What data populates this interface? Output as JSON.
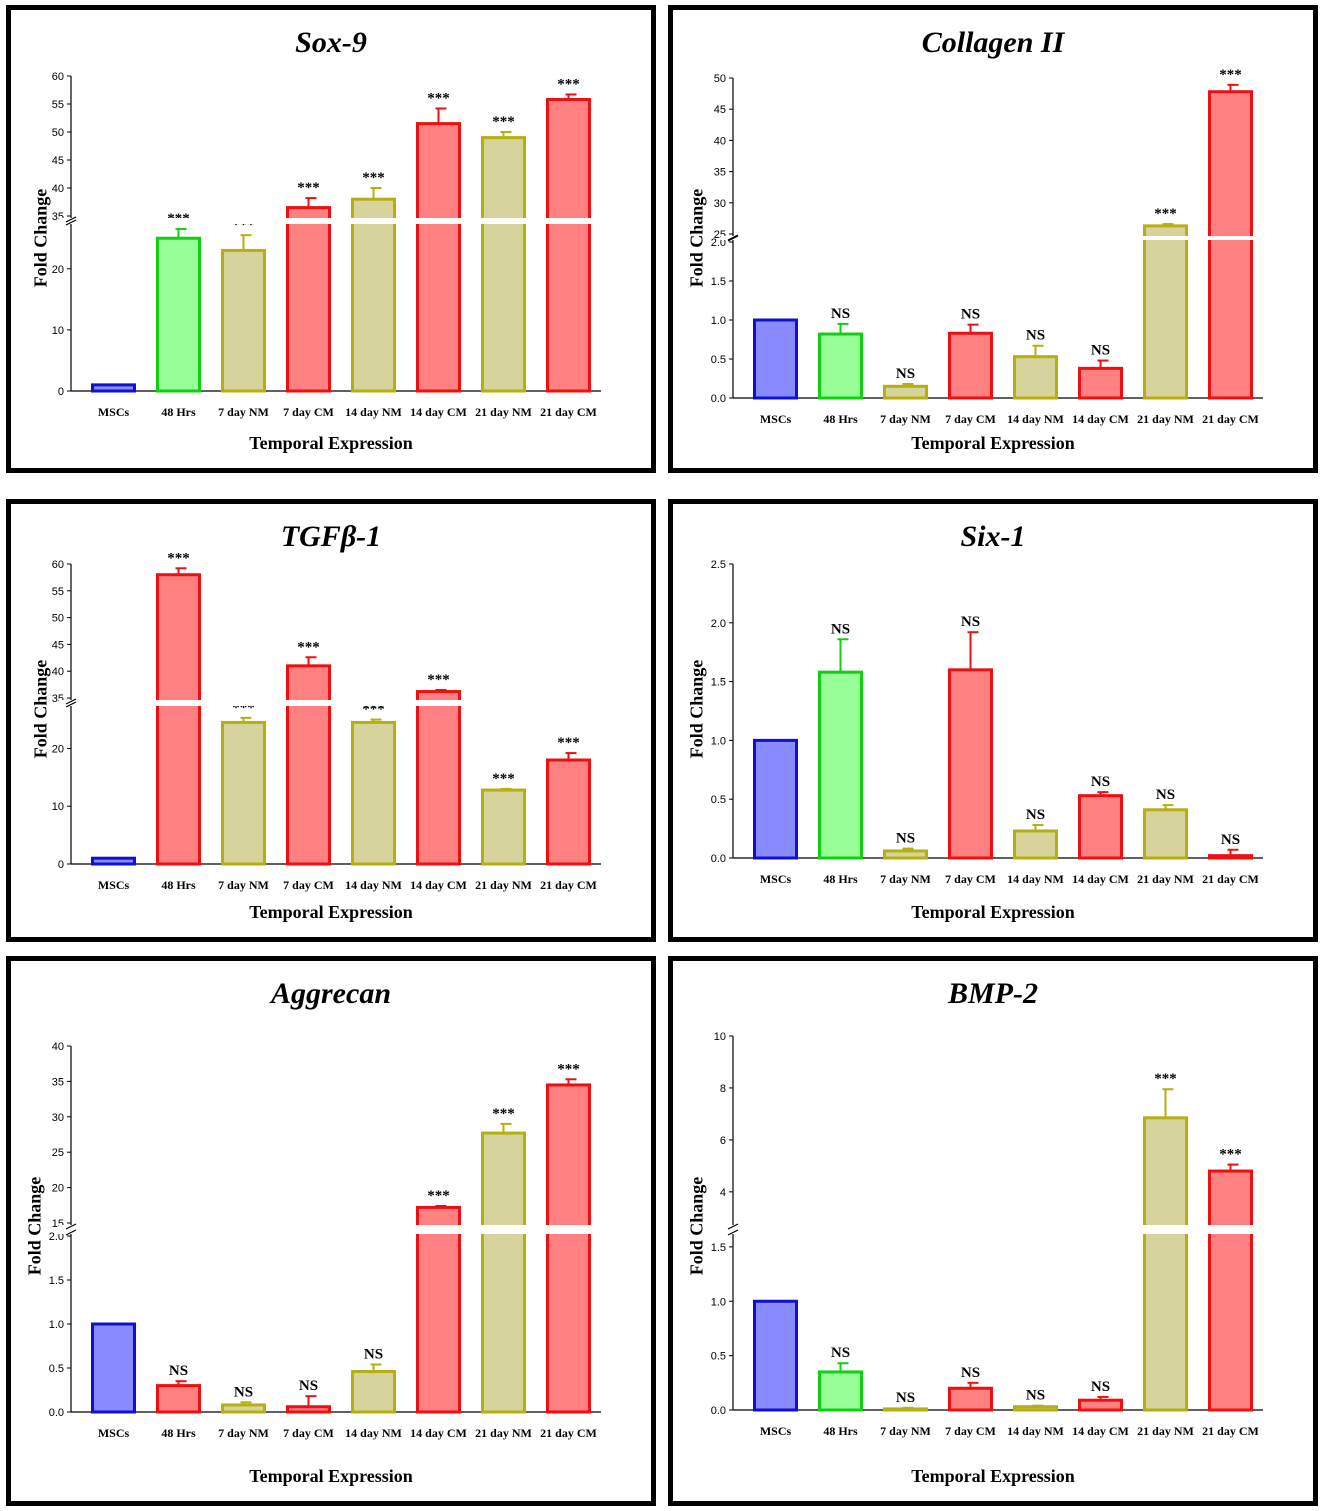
{
  "chart_data": [
    {
      "type": "bar",
      "title": "Sox-9",
      "xlabel": "Temporal Expression",
      "ylabel": "Fold Change",
      "categories": [
        "MSCs",
        "48 Hrs",
        "7 day NM",
        "7 day CM",
        "14 day NM",
        "14 day CM",
        "21 day NM",
        "21 day CM"
      ],
      "bar_colors": [
        "#8a8aff",
        "#98ff98",
        "#d6d39c",
        "#ff8080",
        "#d6d39c",
        "#ff8080",
        "#d6d39c",
        "#ff8080"
      ],
      "edge_colors": [
        "#1010d0",
        "#10d010",
        "#b5b010",
        "#ee1010",
        "#b5b010",
        "#ee1010",
        "#b5b010",
        "#ee1010"
      ],
      "values": [
        1,
        25,
        23,
        36.5,
        38,
        51.5,
        49,
        55.8
      ],
      "errors": [
        0,
        1.5,
        2.5,
        1.7,
        2,
        2.7,
        1,
        0.9
      ],
      "annotations": [
        "",
        "***",
        "***",
        "***",
        "***",
        "***",
        "***",
        "***"
      ],
      "y_segments": [
        {
          "range": [
            0,
            27
          ],
          "ticks": [
            0,
            10,
            20
          ]
        },
        {
          "range": [
            35,
            60
          ],
          "ticks": [
            35,
            40,
            45,
            50,
            55,
            60
          ]
        }
      ]
    },
    {
      "type": "bar",
      "title": "Collagen II",
      "xlabel": "Temporal Expression",
      "ylabel": "Fold Change",
      "categories": [
        "MSCs",
        "48 Hrs",
        "7 day NM",
        "7 day CM",
        "14 day NM",
        "14 day CM",
        "21 day NM",
        "21 day CM"
      ],
      "bar_colors": [
        "#8a8aff",
        "#98ff98",
        "#d6d39c",
        "#ff8080",
        "#d6d39c",
        "#ff8080",
        "#d6d39c",
        "#ff8080"
      ],
      "edge_colors": [
        "#1010d0",
        "#10d010",
        "#b5b010",
        "#ee1010",
        "#b5b010",
        "#ee1010",
        "#b5b010",
        "#ee1010"
      ],
      "values": [
        1,
        0.82,
        0.15,
        0.83,
        0.53,
        0.38,
        26.3,
        47.8
      ],
      "errors": [
        0,
        0.13,
        0.03,
        0.11,
        0.14,
        0.1,
        0.3,
        1.1
      ],
      "annotations": [
        "",
        "NS",
        "NS",
        "NS",
        "NS",
        "NS",
        "***",
        "***"
      ],
      "y_segments": [
        {
          "range": [
            0,
            2
          ],
          "ticks": [
            0.0,
            0.5,
            1.0,
            1.5,
            2.0
          ]
        },
        {
          "range": [
            25,
            50
          ],
          "ticks": [
            25,
            30,
            35,
            40,
            45,
            50
          ]
        }
      ]
    },
    {
      "type": "bar",
      "title": "TGFβ-1",
      "xlabel": "Temporal Expression",
      "ylabel": "Fold Change",
      "categories": [
        "MSCs",
        "48 Hrs",
        "7 day NM",
        "7 day CM",
        "14 day NM",
        "14 day CM",
        "21 day NM",
        "21 day CM"
      ],
      "bar_colors": [
        "#8a8aff",
        "#ff8080",
        "#d6d39c",
        "#ff8080",
        "#d6d39c",
        "#ff8080",
        "#d6d39c",
        "#ff8080"
      ],
      "edge_colors": [
        "#1010d0",
        "#ee1010",
        "#b5b010",
        "#ee1010",
        "#b5b010",
        "#ee1010",
        "#b5b010",
        "#ee1010"
      ],
      "values": [
        1,
        58,
        24.5,
        41,
        24.5,
        36.2,
        12.8,
        18
      ],
      "errors": [
        0,
        1.2,
        0.8,
        1.6,
        0.5,
        0.3,
        0.2,
        1.2
      ],
      "annotations": [
        "",
        "***",
        "***",
        "***",
        "***",
        "***",
        "***",
        "***"
      ],
      "y_segments": [
        {
          "range": [
            0,
            27
          ],
          "ticks": [
            0,
            10,
            20
          ]
        },
        {
          "range": [
            35,
            60
          ],
          "ticks": [
            35,
            40,
            45,
            50,
            55,
            60
          ]
        }
      ]
    },
    {
      "type": "bar",
      "title": "Six-1",
      "xlabel": "Temporal Expression",
      "ylabel": "Fold Change",
      "categories": [
        "MSCs",
        "48 Hrs",
        "7 day NM",
        "7 day CM",
        "14 day NM",
        "14 day CM",
        "21 day NM",
        "21 day CM"
      ],
      "bar_colors": [
        "#8a8aff",
        "#98ff98",
        "#d6d39c",
        "#ff8080",
        "#d6d39c",
        "#ff8080",
        "#d6d39c",
        "#ff8080"
      ],
      "edge_colors": [
        "#1010d0",
        "#10d010",
        "#b5b010",
        "#ee1010",
        "#b5b010",
        "#ee1010",
        "#b5b010",
        "#ee1010"
      ],
      "values": [
        1,
        1.58,
        0.06,
        1.6,
        0.23,
        0.53,
        0.41,
        0.02
      ],
      "errors": [
        0,
        0.28,
        0.02,
        0.32,
        0.05,
        0.03,
        0.04,
        0.05
      ],
      "annotations": [
        "",
        "NS",
        "NS",
        "NS",
        "NS",
        "NS",
        "NS",
        "NS"
      ],
      "y_segments": [
        {
          "range": [
            0,
            2.5
          ],
          "ticks": [
            0.0,
            0.5,
            1.0,
            1.5,
            2.0,
            2.5
          ]
        }
      ]
    },
    {
      "type": "bar",
      "title": "Aggrecan",
      "xlabel": "Temporal Expression",
      "ylabel": "Fold Change",
      "categories": [
        "MSCs",
        "48 Hrs",
        "7 day NM",
        "7 day CM",
        "14 day NM",
        "14 day CM",
        "21 day NM",
        "21 day CM"
      ],
      "bar_colors": [
        "#8a8aff",
        "#ff8080",
        "#d6d39c",
        "#ff8080",
        "#d6d39c",
        "#ff8080",
        "#d6d39c",
        "#ff8080"
      ],
      "edge_colors": [
        "#1010d0",
        "#ee1010",
        "#b5b010",
        "#ee1010",
        "#b5b010",
        "#ee1010",
        "#b5b010",
        "#ee1010"
      ],
      "values": [
        1,
        0.3,
        0.08,
        0.06,
        0.46,
        17.2,
        27.7,
        34.5
      ],
      "errors": [
        0,
        0.05,
        0.03,
        0.12,
        0.08,
        0.2,
        1.3,
        0.8
      ],
      "annotations": [
        "",
        "NS",
        "NS",
        "NS",
        "NS",
        "***",
        "***",
        "***"
      ],
      "y_segments": [
        {
          "range": [
            0,
            2
          ],
          "ticks": [
            0.0,
            0.5,
            1.0,
            1.5,
            2.0
          ]
        },
        {
          "range": [
            15,
            40
          ],
          "ticks": [
            15,
            20,
            25,
            30,
            35,
            40
          ]
        }
      ]
    },
    {
      "type": "bar",
      "title": "BMP-2",
      "xlabel": "Temporal Expression",
      "ylabel": "Fold Change",
      "categories": [
        "MSCs",
        "48 Hrs",
        "7 day NM",
        "7 day CM",
        "14 day NM",
        "14 day CM",
        "21 day NM",
        "21 day CM"
      ],
      "bar_colors": [
        "#8a8aff",
        "#98ff98",
        "#d6d39c",
        "#ff8080",
        "#d6d39c",
        "#ff8080",
        "#d6d39c",
        "#ff8080"
      ],
      "edge_colors": [
        "#1010d0",
        "#10d010",
        "#b5b010",
        "#ee1010",
        "#b5b010",
        "#ee1010",
        "#b5b010",
        "#ee1010"
      ],
      "values": [
        1,
        0.35,
        0.01,
        0.2,
        0.03,
        0.09,
        6.85,
        4.8
      ],
      "errors": [
        0,
        0.08,
        0.01,
        0.05,
        0.01,
        0.03,
        1.1,
        0.25
      ],
      "annotations": [
        "",
        "NS",
        "NS",
        "NS",
        "NS",
        "NS",
        "***",
        "***"
      ],
      "y_segments": [
        {
          "range": [
            0,
            1.6
          ],
          "ticks": [
            0.0,
            0.5,
            1.0,
            1.5
          ]
        },
        {
          "range": [
            2.8,
            10
          ],
          "ticks": [
            4,
            6,
            8,
            10
          ]
        }
      ]
    }
  ]
}
